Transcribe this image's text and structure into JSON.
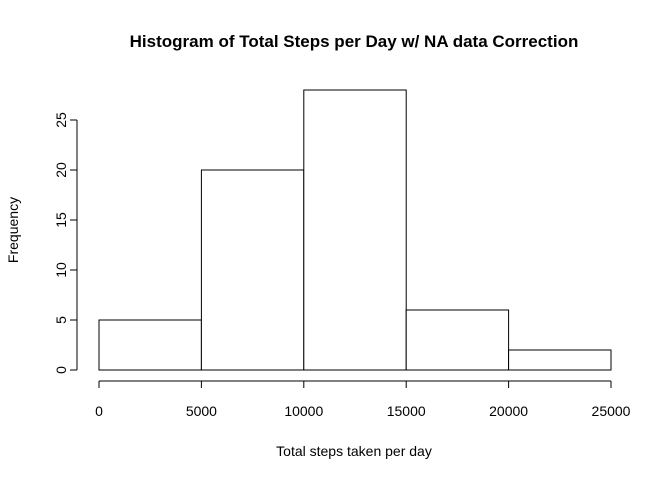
{
  "chart_data": {
    "type": "bar",
    "title": "Histogram of Total Steps per Day w/ NA data Correction",
    "xlabel": "Total steps taken per day",
    "ylabel": "Frequency",
    "bins": [
      {
        "start": 0,
        "end": 5000,
        "count": 5
      },
      {
        "start": 5000,
        "end": 10000,
        "count": 20
      },
      {
        "start": 10000,
        "end": 15000,
        "count": 28
      },
      {
        "start": 15000,
        "end": 20000,
        "count": 6
      },
      {
        "start": 20000,
        "end": 25000,
        "count": 2
      }
    ],
    "xlim": [
      0,
      25000
    ],
    "ylim": [
      0,
      28
    ],
    "xticks": [
      0,
      5000,
      10000,
      15000,
      20000,
      25000
    ],
    "yticks": [
      0,
      5,
      10,
      15,
      20,
      25
    ],
    "grid": false,
    "legend": "none"
  }
}
